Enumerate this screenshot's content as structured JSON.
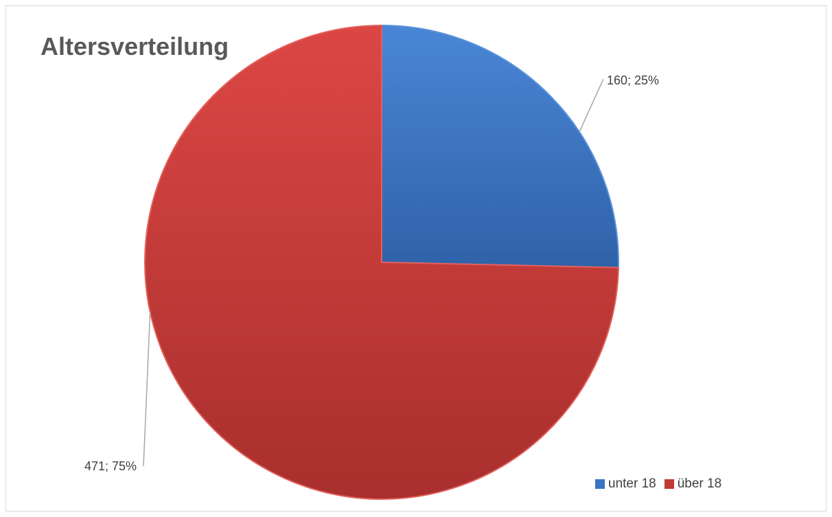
{
  "chart_data": {
    "type": "pie",
    "title": "Altersverteilung",
    "categories": [
      "unter 18",
      "über 18"
    ],
    "values": [
      160,
      471
    ],
    "percentages": [
      25,
      75
    ],
    "data_labels": [
      "160; 25%",
      "471; 75%"
    ],
    "colors": [
      "#3b74c4",
      "#c03a38"
    ],
    "legend_position": "bottom-right"
  }
}
